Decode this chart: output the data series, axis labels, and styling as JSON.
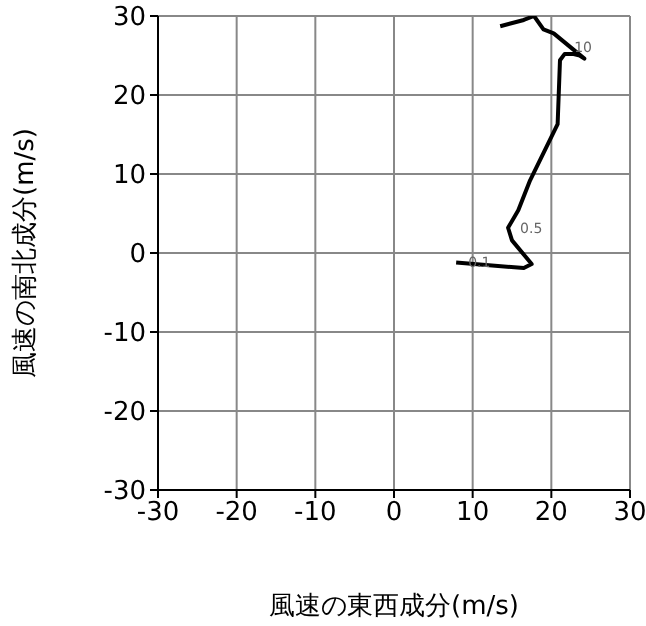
{
  "chart_data": {
    "type": "line",
    "xlabel": "風速の東西成分(m/s)",
    "ylabel": "風速の南北成分(m/s)",
    "x": [
      7.9,
      16.5,
      17.5,
      15,
      14.5,
      15.8,
      17.3,
      20.8,
      21.1,
      21.7,
      22.7,
      23.6,
      24.2,
      20.3,
      19,
      17.8,
      16.5,
      13.5
    ],
    "values": [
      -1.2,
      -1.9,
      -1.4,
      1.6,
      3.2,
      5.4,
      9.2,
      16.3,
      24.4,
      25.2,
      25.2,
      25,
      24.6,
      27.8,
      28.3,
      30,
      29.5,
      28.7
    ],
    "color": "#000000",
    "xlim": [
      -30,
      30
    ],
    "ylim": [
      -30,
      30
    ],
    "xticks": [
      -30,
      -20,
      -10,
      0,
      10,
      20,
      30
    ],
    "yticks": [
      -30,
      -20,
      -10,
      0,
      10,
      20,
      30
    ],
    "grid": true,
    "annotations": [
      {
        "text": "0.1",
        "x": 7.9,
        "y": -1.2
      },
      {
        "text": "0.5",
        "x": 14.5,
        "y": 3.2
      },
      "10"
    ]
  }
}
